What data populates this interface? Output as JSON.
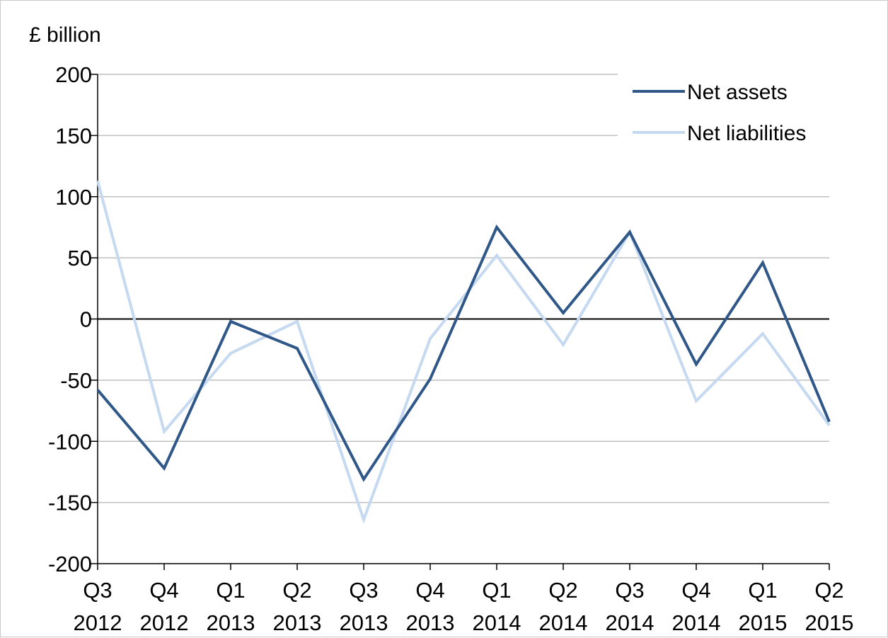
{
  "chart_data": {
    "type": "line",
    "title": "",
    "xlabel": "",
    "ylabel": "£ billion",
    "ylim": [
      -200,
      200
    ],
    "yticks": [
      200,
      150,
      100,
      50,
      0,
      -50,
      -100,
      -150,
      -200
    ],
    "categories": [
      [
        "Q3",
        "2012"
      ],
      [
        "Q4",
        "2012"
      ],
      [
        "Q1",
        "2013"
      ],
      [
        "Q2",
        "2013"
      ],
      [
        "Q3",
        "2013"
      ],
      [
        "Q4",
        "2013"
      ],
      [
        "Q1",
        "2014"
      ],
      [
        "Q2",
        "2014"
      ],
      [
        "Q3",
        "2014"
      ],
      [
        "Q4",
        "2014"
      ],
      [
        "Q1",
        "2015"
      ],
      [
        "Q2",
        "2015"
      ]
    ],
    "series": [
      {
        "name": "Net assets",
        "color": "#2f5787",
        "values": [
          -58,
          -122,
          -2,
          -24,
          -131,
          -49,
          75,
          5,
          71,
          -37,
          46,
          -84
        ]
      },
      {
        "name": "Net liabilities",
        "color": "#c5d9f1",
        "values": [
          113,
          -92,
          -28,
          -2,
          -164,
          -16,
          52,
          -21,
          71,
          -67,
          -12,
          -87
        ]
      }
    ],
    "grid": true,
    "zero_line": true,
    "legend_position": "top-right"
  }
}
